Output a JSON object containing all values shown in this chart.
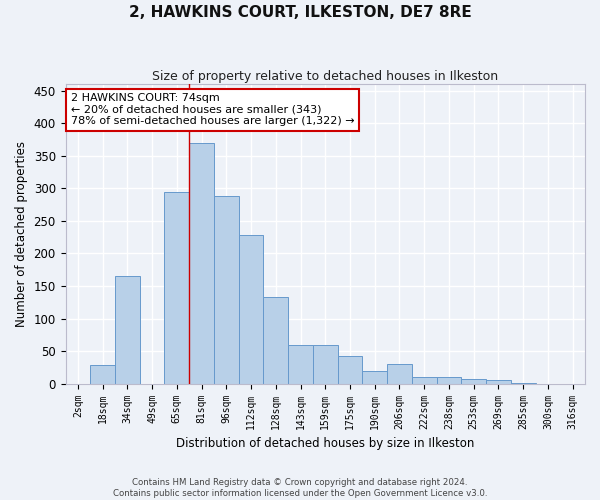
{
  "title": "2, HAWKINS COURT, ILKESTON, DE7 8RE",
  "subtitle": "Size of property relative to detached houses in Ilkeston",
  "xlabel": "Distribution of detached houses by size in Ilkeston",
  "ylabel": "Number of detached properties",
  "categories": [
    "2sqm",
    "18sqm",
    "34sqm",
    "49sqm",
    "65sqm",
    "81sqm",
    "96sqm",
    "112sqm",
    "128sqm",
    "143sqm",
    "159sqm",
    "175sqm",
    "190sqm",
    "206sqm",
    "222sqm",
    "238sqm",
    "253sqm",
    "269sqm",
    "285sqm",
    "300sqm",
    "316sqm"
  ],
  "values": [
    0,
    28,
    165,
    0,
    295,
    370,
    288,
    228,
    133,
    60,
    60,
    42,
    20,
    30,
    10,
    10,
    7,
    5,
    1,
    0,
    0
  ],
  "bar_color": "#b8d0e8",
  "bar_edge_color": "#6699cc",
  "annotation_text": "2 HAWKINS COURT: 74sqm\n← 20% of detached houses are smaller (343)\n78% of semi-detached houses are larger (1,322) →",
  "annotation_box_color": "#ffffff",
  "annotation_box_edge": "#cc0000",
  "vline_color": "#cc0000",
  "background_color": "#eef2f8",
  "grid_color": "#ffffff",
  "ylim": [
    0,
    460
  ],
  "yticks": [
    0,
    50,
    100,
    150,
    200,
    250,
    300,
    350,
    400,
    450
  ],
  "footer_line1": "Contains HM Land Registry data © Crown copyright and database right 2024.",
  "footer_line2": "Contains public sector information licensed under the Open Government Licence v3.0."
}
